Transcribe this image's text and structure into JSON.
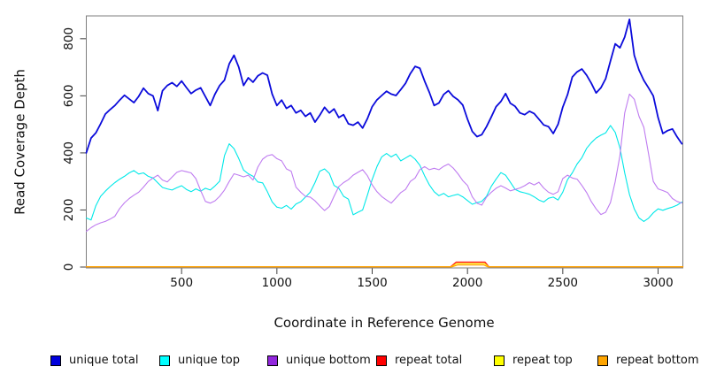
{
  "figure": {
    "background": "#ffffff",
    "box_color": "#7f7f7f",
    "tick_color": "#404040",
    "text_color": "#111111"
  },
  "chart_data": {
    "type": "line",
    "title": "",
    "xlabel": "Coordinate in Reference Genome",
    "ylabel": "Read Coverage Depth",
    "xlim": [
      0,
      3130
    ],
    "ylim": [
      0,
      880
    ],
    "xticks": [
      500,
      1000,
      1500,
      2000,
      2500,
      3000
    ],
    "yticks": [
      0,
      200,
      400,
      600,
      800
    ],
    "grid": false,
    "legend_position": "bottom",
    "x_start": 0,
    "x_step": 25,
    "series": [
      {
        "name": "unique total",
        "line_color": "#0b0bdb",
        "swatch_color": "#0000dd",
        "line_width": 1.8,
        "values": [
          400,
          452,
          470,
          502,
          536,
          552,
          566,
          585,
          602,
          589,
          576,
          598,
          627,
          608,
          600,
          548,
          618,
          636,
          646,
          633,
          652,
          629,
          608,
          620,
          628,
          597,
          566,
          606,
          636,
          655,
          712,
          742,
          700,
          636,
          663,
          648,
          670,
          680,
          672,
          606,
          566,
          585,
          556,
          566,
          540,
          549,
          528,
          540,
          508,
          532,
          560,
          540,
          554,
          524,
          534,
          502,
          497,
          508,
          487,
          520,
          562,
          586,
          601,
          616,
          606,
          601,
          622,
          644,
          678,
          703,
          697,
          652,
          612,
          566,
          575,
          605,
          618,
          598,
          586,
          568,
          518,
          475,
          457,
          464,
          492,
          526,
          562,
          580,
          608,
          574,
          563,
          540,
          534,
          546,
          538,
          518,
          498,
          492,
          468,
          500,
          560,
          604,
          666,
          684,
          694,
          672,
          644,
          610,
          628,
          660,
          722,
          782,
          768,
          806,
          868,
          742,
          690,
          654,
          628,
          600,
          524,
          468,
          478,
          484,
          456,
          432
        ]
      },
      {
        "name": "unique top",
        "line_color": "#00e8e8",
        "swatch_color": "#00ffff",
        "line_width": 1.1,
        "values": [
          172,
          165,
          215,
          248,
          266,
          282,
          296,
          308,
          318,
          330,
          338,
          326,
          330,
          318,
          312,
          295,
          279,
          274,
          270,
          278,
          285,
          272,
          264,
          274,
          266,
          276,
          270,
          284,
          301,
          390,
          432,
          415,
          380,
          340,
          327,
          318,
          298,
          295,
          264,
          228,
          210,
          206,
          216,
          203,
          221,
          229,
          245,
          262,
          296,
          336,
          344,
          328,
          286,
          276,
          248,
          238,
          183,
          192,
          200,
          252,
          307,
          352,
          386,
          398,
          386,
          396,
          372,
          382,
          392,
          378,
          357,
          320,
          288,
          264,
          250,
          258,
          246,
          251,
          255,
          246,
          233,
          220,
          226,
          230,
          248,
          283,
          308,
          331,
          322,
          297,
          272,
          264,
          260,
          255,
          246,
          235,
          228,
          241,
          245,
          235,
          262,
          306,
          330,
          361,
          383,
          416,
          436,
          452,
          462,
          470,
          496,
          472,
          418,
          330,
          254,
          204,
          172,
          160,
          171,
          190,
          204,
          199,
          205,
          210,
          217,
          228
        ]
      },
      {
        "name": "unique bottom",
        "line_color": "#bf7cf0",
        "swatch_color": "#9227dd",
        "line_width": 1.1,
        "values": [
          125,
          138,
          148,
          155,
          160,
          168,
          178,
          205,
          225,
          240,
          252,
          262,
          280,
          300,
          312,
          322,
          305,
          298,
          315,
          332,
          338,
          334,
          330,
          310,
          268,
          230,
          224,
          232,
          248,
          270,
          300,
          327,
          322,
          316,
          322,
          305,
          350,
          378,
          390,
          394,
          380,
          372,
          344,
          336,
          280,
          262,
          248,
          245,
          232,
          214,
          198,
          212,
          248,
          282,
          296,
          306,
          322,
          332,
          341,
          320,
          288,
          264,
          247,
          235,
          224,
          242,
          261,
          272,
          300,
          312,
          341,
          352,
          341,
          346,
          341,
          353,
          361,
          347,
          327,
          303,
          286,
          246,
          224,
          217,
          245,
          262,
          276,
          285,
          277,
          267,
          272,
          277,
          285,
          296,
          288,
          297,
          277,
          262,
          255,
          264,
          310,
          322,
          312,
          308,
          286,
          261,
          229,
          204,
          184,
          192,
          226,
          300,
          390,
          540,
          606,
          588,
          528,
          490,
          398,
          300,
          274,
          268,
          261,
          240,
          230,
          224
        ]
      },
      {
        "name": "repeat total",
        "line_color": "#ff1f1f",
        "swatch_color": "#ff0000",
        "line_width": 1.4,
        "x": [
          0,
          1912,
          1940,
          2092,
          2112,
          3130
        ],
        "values": [
          1,
          1,
          17,
          17,
          1,
          1
        ]
      },
      {
        "name": "repeat top",
        "line_color": "#ffec00",
        "swatch_color": "#ffff00",
        "line_width": 1.2,
        "x": [
          0,
          1915,
          1943,
          2090,
          2110,
          3130
        ],
        "values": [
          1,
          1,
          12,
          12,
          1,
          1
        ]
      },
      {
        "name": "repeat bottom",
        "line_color": "#ff9e00",
        "swatch_color": "#ffa500",
        "line_width": 1.2,
        "x": [
          0,
          1920,
          1948,
          2086,
          2106,
          3130
        ],
        "values": [
          1,
          1,
          7,
          7,
          1,
          1
        ]
      }
    ]
  }
}
